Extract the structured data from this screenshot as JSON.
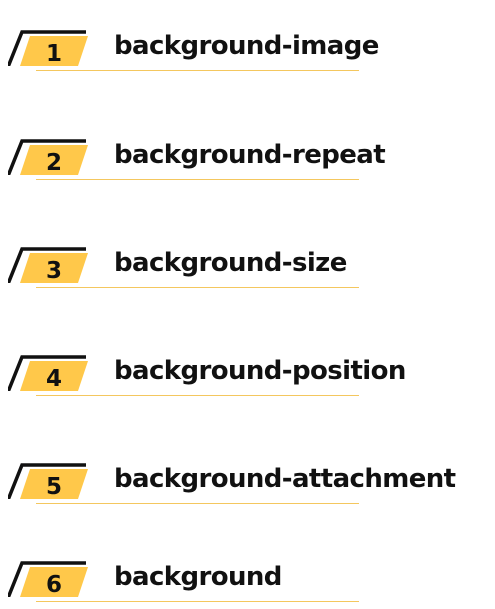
{
  "accent_color": "#ffc84a",
  "stroke_color": "#111111",
  "items": [
    {
      "number": "1",
      "label": "background-image"
    },
    {
      "number": "2",
      "label": "background-repeat"
    },
    {
      "number": "3",
      "label": "background-size"
    },
    {
      "number": "4",
      "label": "background-position"
    },
    {
      "number": "5",
      "label": "background-attachment"
    },
    {
      "number": "6",
      "label": "background"
    }
  ]
}
